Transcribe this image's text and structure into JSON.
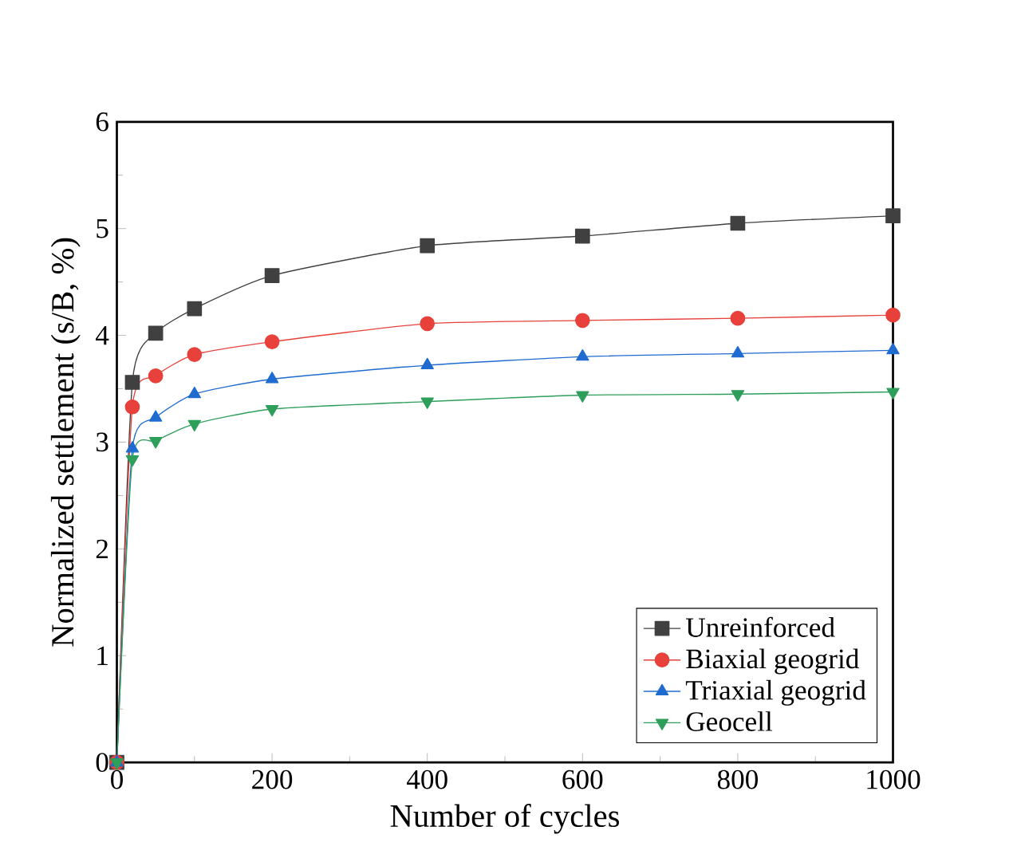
{
  "chart_data": {
    "type": "line",
    "xlabel": "Number of cycles",
    "ylabel": "Normalized settlement (s/B, %)",
    "xlim": [
      0,
      1000
    ],
    "ylim": [
      0,
      6
    ],
    "xticks": [
      0,
      200,
      400,
      600,
      800,
      1000
    ],
    "yticks": [
      0,
      1,
      2,
      3,
      4,
      5,
      6
    ],
    "legend": "bottom right",
    "grid": false,
    "x": [
      0,
      20,
      50,
      100,
      200,
      400,
      600,
      800,
      1000
    ],
    "series": [
      {
        "name": "Unreinforced",
        "color": "#404040",
        "marker": "square",
        "values": [
          0,
          3.56,
          4.02,
          4.25,
          4.56,
          4.84,
          4.93,
          5.05,
          5.12
        ]
      },
      {
        "name": "Biaxial geogrid",
        "color": "#e8403a",
        "marker": "circle",
        "values": [
          0,
          3.33,
          3.62,
          3.82,
          3.94,
          4.11,
          4.14,
          4.16,
          4.19
        ]
      },
      {
        "name": "Triaxial geogrid",
        "color": "#1f6bd0",
        "marker": "triangle",
        "values": [
          0,
          2.94,
          3.23,
          3.45,
          3.59,
          3.72,
          3.8,
          3.83,
          3.86
        ]
      },
      {
        "name": "Geocell",
        "color": "#2e9e5b",
        "marker": "triangle down",
        "values": [
          0,
          2.84,
          3.01,
          3.17,
          3.31,
          3.38,
          3.44,
          3.45,
          3.47
        ]
      }
    ]
  }
}
